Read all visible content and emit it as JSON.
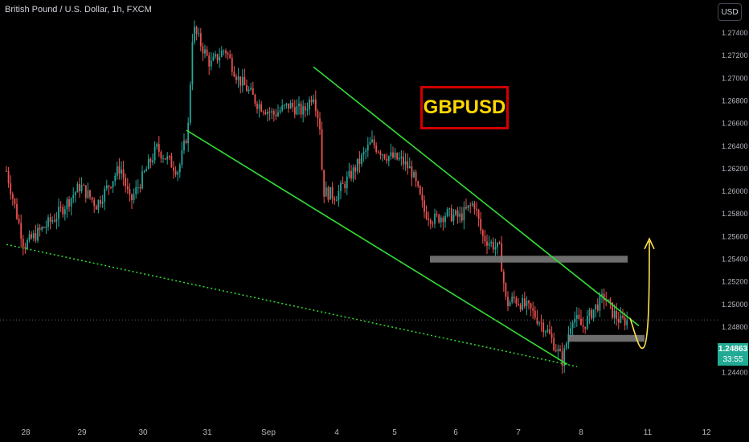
{
  "header": {
    "symbol_title": "British Pound / U.S. Dollar, 1h, FXCM",
    "currency": "USD"
  },
  "annotation_label": "GBPUSD",
  "price_badge": {
    "price": "1.24863",
    "countdown": "33:55"
  },
  "colors": {
    "up": "#26a69a",
    "down": "#ef5350",
    "trendline": "#33dd33",
    "dotted_trendline": "#33dd33",
    "zone": "#808080",
    "projection_arrow": "#ffe14d",
    "label_border": "#d10000",
    "label_text": "#ffd600",
    "badge": "#22ab94"
  },
  "chart_data": {
    "type": "candlestick",
    "symbol": "GBPUSD",
    "timeframe": "1h",
    "y_axis": {
      "range": [
        1.2432,
        1.2752
      ],
      "ticks": [
        "1.27400",
        "1.27200",
        "1.27000",
        "1.26800",
        "1.26600",
        "1.26400",
        "1.26200",
        "1.26000",
        "1.25800",
        "1.25600",
        "1.25400",
        "1.25200",
        "1.25000",
        "1.24800",
        "1.24600",
        "1.24400"
      ]
    },
    "x_axis": {
      "ticks": [
        "28",
        "29",
        "30",
        "31",
        "Sep",
        "4",
        "5",
        "6",
        "7",
        "8",
        "11",
        "12"
      ]
    },
    "current_price": 1.24863,
    "close_path": [
      [
        "28",
        1.2618
      ],
      [
        "28",
        1.2552
      ],
      [
        "28",
        1.2578
      ],
      [
        "29",
        1.2605
      ],
      [
        "29",
        1.2588
      ],
      [
        "30",
        1.2622
      ],
      [
        "30",
        1.259
      ],
      [
        "30",
        1.2638
      ],
      [
        "31",
        1.2618
      ],
      [
        "31",
        1.2655
      ],
      [
        "31",
        1.2745
      ],
      [
        "31",
        1.2712
      ],
      [
        "31",
        1.2726
      ],
      [
        "31",
        1.27
      ],
      [
        "31",
        1.269
      ],
      [
        "31",
        1.2678
      ],
      [
        "Sep",
        1.2668
      ],
      [
        "Sep",
        1.2676
      ],
      [
        "Sep",
        1.267
      ],
      [
        "4",
        1.2687
      ],
      [
        "4",
        1.2658
      ],
      [
        "4",
        1.26
      ],
      [
        "4",
        1.2596
      ],
      [
        "4",
        1.2618
      ],
      [
        "5",
        1.2643
      ],
      [
        "5",
        1.2632
      ],
      [
        "5",
        1.2627
      ],
      [
        "5",
        1.2618
      ],
      [
        "5",
        1.2582
      ],
      [
        "6",
        1.2575
      ],
      [
        "6",
        1.258
      ],
      [
        "6",
        1.2577
      ],
      [
        "6",
        1.259
      ],
      [
        "6",
        1.256
      ],
      [
        "7",
        1.2548
      ],
      [
        "7",
        1.25
      ],
      [
        "7",
        1.2505
      ],
      [
        "7",
        1.2495
      ],
      [
        "7",
        1.2478
      ],
      [
        "8",
        1.245
      ],
      [
        "8",
        1.249
      ],
      [
        "8",
        1.248
      ],
      [
        "8",
        1.2495
      ],
      [
        "8",
        1.2507
      ],
      [
        "8",
        1.2493
      ],
      [
        "8",
        1.2485
      ],
      [
        "8",
        1.24863
      ]
    ],
    "drawings": {
      "upper_trendline": {
        "from": [
          "4",
          1.271
        ],
        "to": [
          "8",
          1.2481
        ]
      },
      "lower_trendline": {
        "from": [
          "31",
          1.2654
        ],
        "to": [
          "8",
          1.2447
        ]
      },
      "dotted_trendline": {
        "from": [
          "28",
          1.2553
        ],
        "to": [
          "8",
          1.2447
        ]
      },
      "zones": [
        {
          "from": "6",
          "to": "8",
          "low": 1.2537,
          "high": 1.2543
        },
        {
          "from": "8",
          "to": "8",
          "low": 1.2467,
          "high": 1.2473
        }
      ],
      "projection": "curved arrow dipping to ~1.2465 then rising to ~1.2557"
    },
    "grid": false
  }
}
